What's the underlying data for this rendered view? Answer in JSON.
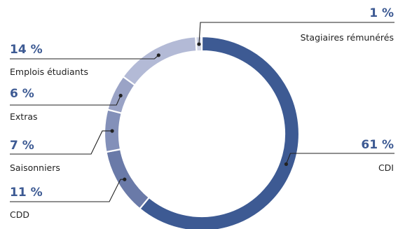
{
  "chart_data": {
    "type": "pie",
    "donut": true,
    "slices": [
      {
        "label": "CDI",
        "value": 61,
        "value_label": "61 %",
        "color": "#3d5a93"
      },
      {
        "label": "CDD",
        "value": 11,
        "value_label": "11 %",
        "color": "#6a7aa8"
      },
      {
        "label": "Saisonniers",
        "value": 7,
        "value_label": "7 %",
        "color": "#8390b9"
      },
      {
        "label": "Extras",
        "value": 6,
        "value_label": "6 %",
        "color": "#9aa3c6"
      },
      {
        "label": "Emplois étudiants",
        "value": 14,
        "value_label": "14 %",
        "color": "#b3bad6"
      },
      {
        "label": "Stagiaires rémunérés",
        "value": 1,
        "value_label": "1 %",
        "color": "#d2d6e6"
      }
    ]
  }
}
